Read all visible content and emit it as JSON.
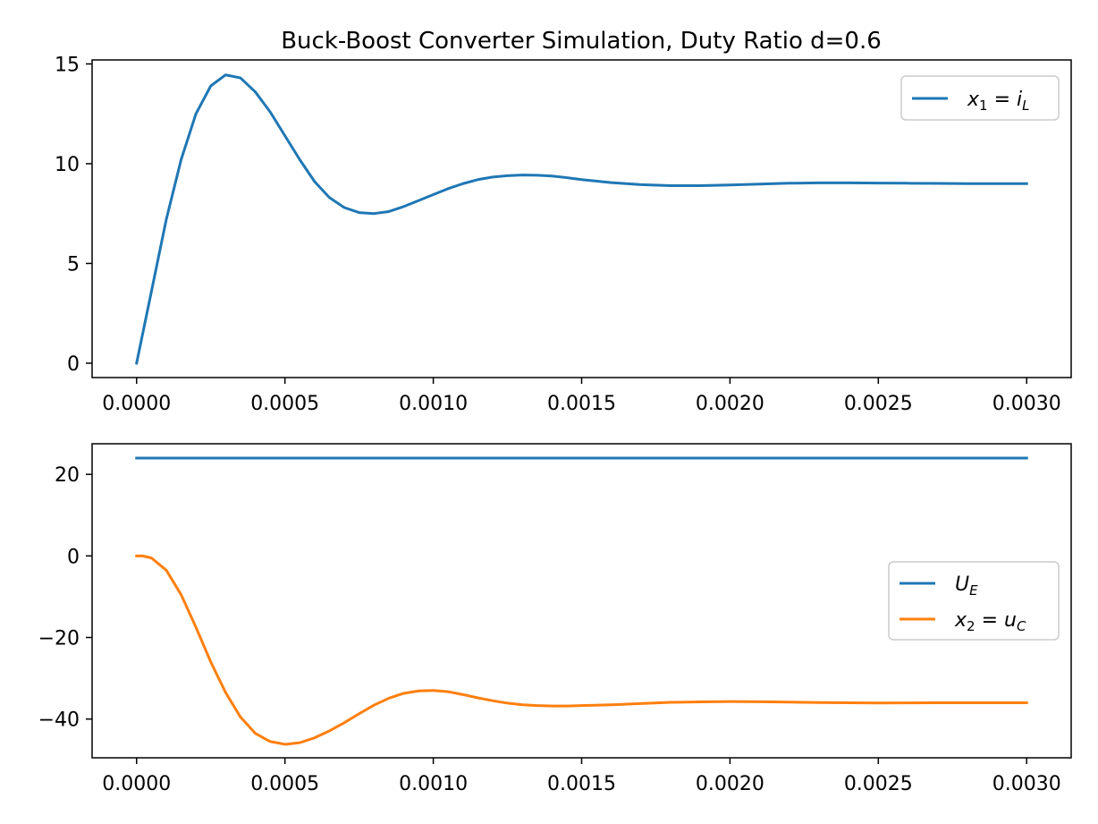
{
  "chart_data": [
    {
      "type": "line",
      "title": "Buck-Boost Converter Simulation, Duty Ratio d=0.6",
      "xlabel": "",
      "ylabel": "",
      "xlim": [
        -0.00015,
        0.00315
      ],
      "ylim": [
        -0.72,
        15.2
      ],
      "xticks": [
        0.0,
        0.0005,
        0.001,
        0.0015,
        0.002,
        0.0025,
        0.003
      ],
      "xtick_labels": [
        "0.0000",
        "0.0005",
        "0.0010",
        "0.0015",
        "0.0020",
        "0.0025",
        "0.0030"
      ],
      "yticks": [
        0,
        5,
        10,
        15
      ],
      "ytick_labels": [
        "0",
        "5",
        "10",
        "15"
      ],
      "grid": false,
      "legend_position": "upper right",
      "series": [
        {
          "name": "x₁ = i_L",
          "color": "#1f77b4",
          "x": [
            0.0,
            5e-05,
            0.0001,
            0.00015,
            0.0002,
            0.00025,
            0.0003,
            0.00035,
            0.0004,
            0.00045,
            0.0005,
            0.00055,
            0.0006,
            0.00065,
            0.0007,
            0.00075,
            0.0008,
            0.00085,
            0.0009,
            0.00095,
            0.001,
            0.00105,
            0.0011,
            0.00115,
            0.0012,
            0.00125,
            0.0013,
            0.00135,
            0.0014,
            0.00145,
            0.0015,
            0.0016,
            0.0017,
            0.0018,
            0.0019,
            0.002,
            0.0021,
            0.0022,
            0.0023,
            0.0024,
            0.0025,
            0.0026,
            0.0027,
            0.0028,
            0.0029,
            0.003
          ],
          "y": [
            0.0,
            3.6,
            7.2,
            10.2,
            12.5,
            13.9,
            14.45,
            14.3,
            13.6,
            12.6,
            11.4,
            10.2,
            9.1,
            8.3,
            7.8,
            7.55,
            7.5,
            7.6,
            7.85,
            8.15,
            8.45,
            8.75,
            9.0,
            9.2,
            9.33,
            9.4,
            9.43,
            9.42,
            9.38,
            9.3,
            9.2,
            9.05,
            8.95,
            8.9,
            8.9,
            8.93,
            8.98,
            9.02,
            9.04,
            9.04,
            9.03,
            9.02,
            9.01,
            9.0,
            9.0,
            9.0
          ]
        }
      ]
    },
    {
      "type": "line",
      "title": "",
      "xlabel": "",
      "ylabel": "",
      "xlim": [
        -0.00015,
        0.00315
      ],
      "ylim": [
        -49.5,
        27.5
      ],
      "xticks": [
        0.0,
        0.0005,
        0.001,
        0.0015,
        0.002,
        0.0025,
        0.003
      ],
      "xtick_labels": [
        "0.0000",
        "0.0005",
        "0.0010",
        "0.0015",
        "0.0020",
        "0.0025",
        "0.0030"
      ],
      "yticks": [
        20,
        0,
        -20,
        -40
      ],
      "ytick_labels": [
        "20",
        "0",
        "−20",
        "−40"
      ],
      "grid": false,
      "legend_position": "center right",
      "series": [
        {
          "name": "U_E",
          "color": "#1f77b4",
          "x": [
            0.0,
            0.003
          ],
          "y": [
            24,
            24
          ]
        },
        {
          "name": "x₂ = u_C",
          "color": "#ff7f0e",
          "x": [
            0.0,
            2e-05,
            5e-05,
            0.0001,
            0.00015,
            0.0002,
            0.00025,
            0.0003,
            0.00035,
            0.0004,
            0.00045,
            0.0005,
            0.00055,
            0.0006,
            0.00065,
            0.0007,
            0.00075,
            0.0008,
            0.00085,
            0.0009,
            0.00095,
            0.001,
            0.00105,
            0.0011,
            0.00115,
            0.0012,
            0.00125,
            0.0013,
            0.00135,
            0.0014,
            0.00145,
            0.0015,
            0.0016,
            0.0017,
            0.0018,
            0.0019,
            0.002,
            0.0021,
            0.0022,
            0.0023,
            0.0024,
            0.0025,
            0.0026,
            0.0027,
            0.0028,
            0.0029,
            0.003
          ],
          "y": [
            0.0,
            0.0,
            -0.5,
            -3.5,
            -9.5,
            -17.5,
            -26.0,
            -33.5,
            -39.5,
            -43.5,
            -45.5,
            -46.2,
            -45.8,
            -44.6,
            -42.9,
            -40.9,
            -38.7,
            -36.6,
            -34.9,
            -33.7,
            -33.1,
            -33.0,
            -33.3,
            -34.0,
            -34.8,
            -35.5,
            -36.1,
            -36.5,
            -36.7,
            -36.8,
            -36.8,
            -36.7,
            -36.5,
            -36.2,
            -35.9,
            -35.8,
            -35.7,
            -35.75,
            -35.85,
            -35.95,
            -36.02,
            -36.05,
            -36.04,
            -36.02,
            -36.0,
            -36.0,
            -36.0
          ]
        }
      ]
    }
  ]
}
